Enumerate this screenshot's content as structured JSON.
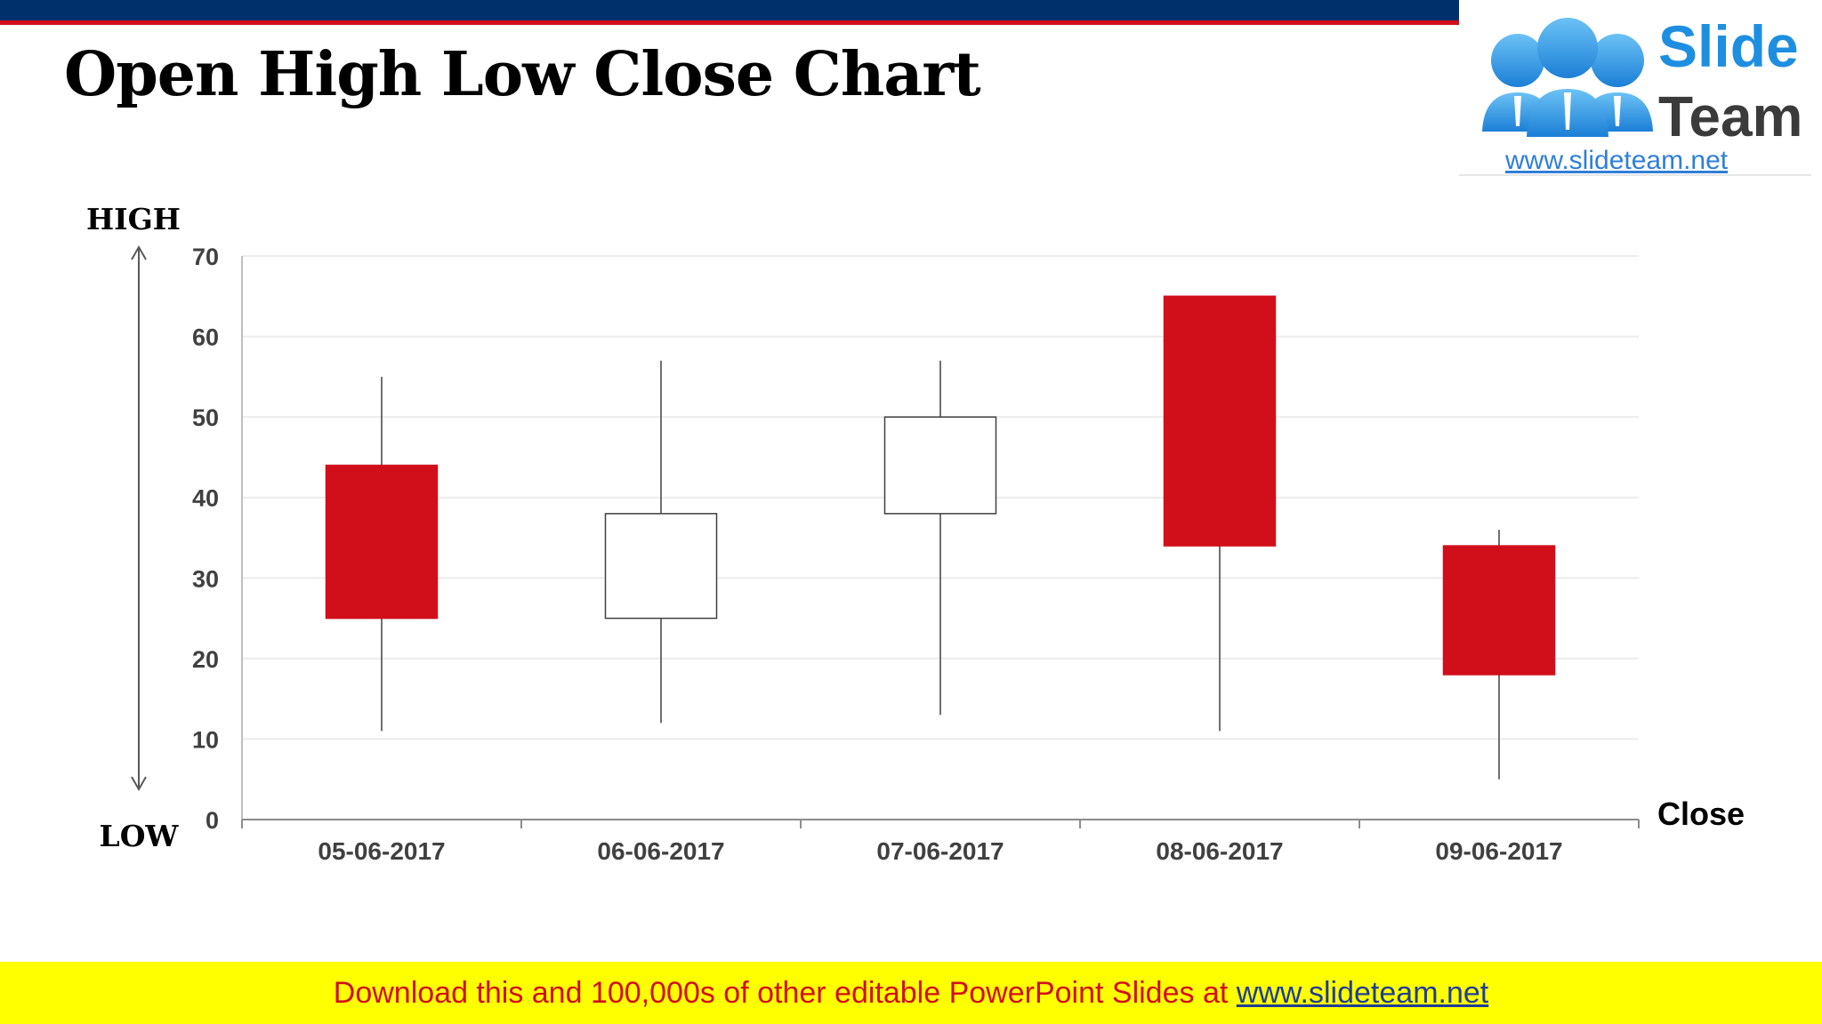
{
  "slide": {
    "title": "Open High Low Close Chart",
    "footer_text": "Download this and 100,000s of other editable PowerPoint Slides at ",
    "footer_link": "www.slideteam.net"
  },
  "logo": {
    "slide_word": "Slide",
    "team_word": "Team",
    "url": "www.slideteam.net"
  },
  "colors": {
    "top_bar": "#00306b",
    "accent_red": "#d10f1b",
    "bearish_fill": "#d10f1b",
    "bullish_fill": "#ffffff",
    "footer_bg": "#ffff00"
  },
  "chart_data": {
    "type": "candlestick",
    "title": "",
    "xlabel": "Close",
    "ylabel_top": "HIGH",
    "ylabel_bottom": "LOW",
    "ylim": [
      0,
      70
    ],
    "yticks": [
      0,
      10,
      20,
      30,
      40,
      50,
      60,
      70
    ],
    "grid": true,
    "categories": [
      "05-06-2017",
      "06-06-2017",
      "07-06-2017",
      "08-06-2017",
      "09-06-2017"
    ],
    "series": [
      {
        "open": [
          44,
          25,
          38,
          65,
          34
        ],
        "high": [
          55,
          57,
          57,
          65,
          36
        ],
        "low": [
          11,
          12,
          13,
          11,
          5
        ],
        "close": [
          25,
          38,
          50,
          34,
          18
        ]
      }
    ]
  }
}
